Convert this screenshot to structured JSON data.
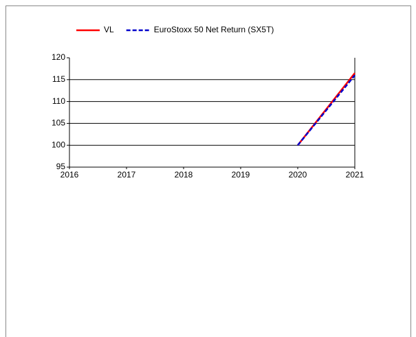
{
  "chart_data": {
    "type": "line",
    "x": [
      2020,
      2021
    ],
    "series": [
      {
        "name": "VL",
        "color": "#ff0000",
        "dash": false,
        "values": [
          100,
          116.5
        ]
      },
      {
        "name": "EuroStoxx 50 Net Return (SX5T)",
        "color": "#0000cc",
        "dash": true,
        "values": [
          100,
          116
        ]
      }
    ],
    "xlim": [
      2016,
      2021
    ],
    "xticks": [
      2016,
      2017,
      2018,
      2019,
      2020,
      2021
    ],
    "ylim": [
      95,
      120
    ],
    "yticks": [
      95,
      100,
      105,
      110,
      115,
      120
    ],
    "grid": true,
    "legend": "top"
  }
}
